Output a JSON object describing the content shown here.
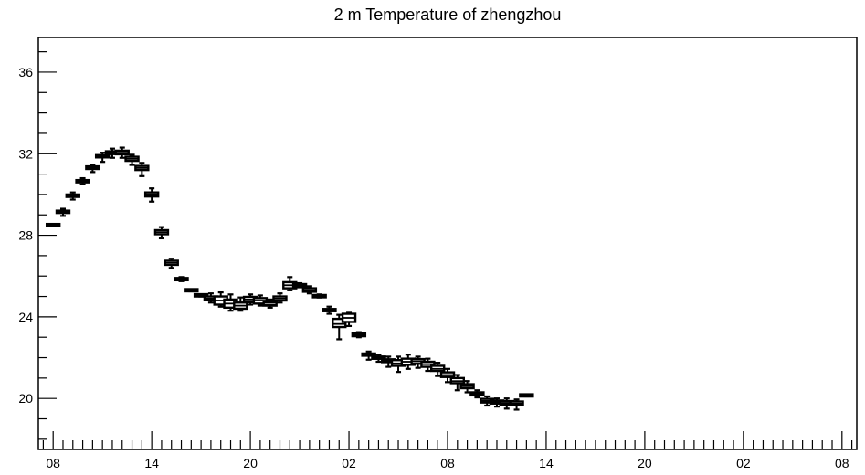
{
  "chart_data": {
    "type": "box",
    "title": "2 m Temperature of zhengzhou",
    "xlabel": "",
    "ylabel": "",
    "ylim": [
      17.5,
      37.7
    ],
    "y_ticks": [
      20,
      24,
      28,
      32,
      36
    ],
    "x_ticks": [
      {
        "index": 0,
        "label": "08"
      },
      {
        "index": 10,
        "label": "14"
      },
      {
        "index": 20,
        "label": "20"
      },
      {
        "index": 30,
        "label": "02"
      },
      {
        "index": 40,
        "label": "08"
      },
      {
        "index": 50,
        "label": "14"
      },
      {
        "index": 60,
        "label": "20"
      },
      {
        "index": 70,
        "label": "02"
      },
      {
        "index": 80,
        "label": "08"
      }
    ],
    "x_range": [
      -1.5,
      81.5
    ],
    "step_hours": 3,
    "boxes": [
      {
        "index": 0,
        "min": 28.45,
        "q1": 28.47,
        "median": 28.5,
        "q3": 28.53,
        "max": 28.55
      },
      {
        "index": 2,
        "min": 28.95,
        "q1": 29.1,
        "median": 29.15,
        "q3": 29.2,
        "max": 29.3
      },
      {
        "index": 4,
        "min": 29.75,
        "q1": 29.88,
        "median": 29.95,
        "q3": 30.0,
        "max": 30.1
      },
      {
        "index": 6,
        "min": 30.5,
        "q1": 30.6,
        "median": 30.65,
        "q3": 30.7,
        "max": 30.8
      },
      {
        "index": 8,
        "min": 31.1,
        "q1": 31.25,
        "median": 31.3,
        "q3": 31.38,
        "max": 31.45
      },
      {
        "index": 10,
        "min": 31.6,
        "q1": 31.82,
        "median": 31.87,
        "q3": 31.93,
        "max": 32.05
      },
      {
        "index": 12,
        "min": 31.8,
        "q1": 31.98,
        "median": 32.05,
        "q3": 32.12,
        "max": 32.25
      },
      {
        "index": 14,
        "min": 31.8,
        "q1": 31.97,
        "median": 32.05,
        "q3": 32.15,
        "max": 32.3
      },
      {
        "index": 16,
        "min": 31.45,
        "q1": 31.65,
        "median": 31.75,
        "q3": 31.85,
        "max": 31.95
      },
      {
        "index": 18,
        "min": 30.9,
        "q1": 31.2,
        "median": 31.3,
        "q3": 31.4,
        "max": 31.55
      },
      {
        "index": 20,
        "min": 29.65,
        "q1": 29.9,
        "median": 30.0,
        "q3": 30.1,
        "max": 30.3
      },
      {
        "index": 22,
        "min": 27.85,
        "q1": 28.05,
        "median": 28.15,
        "q3": 28.25,
        "max": 28.4
      },
      {
        "index": 24,
        "min": 26.4,
        "q1": 26.55,
        "median": 26.65,
        "q3": 26.75,
        "max": 26.85
      },
      {
        "index": 26,
        "min": 25.75,
        "q1": 25.8,
        "median": 25.85,
        "q3": 25.9,
        "max": 25.95
      },
      {
        "index": 28,
        "min": 25.25,
        "q1": 25.28,
        "median": 25.3,
        "q3": 25.33,
        "max": 25.35
      },
      {
        "index": 30,
        "min": 25.0,
        "q1": 25.03,
        "median": 25.05,
        "q3": 25.08,
        "max": 25.1
      },
      {
        "index": 32,
        "min": 24.7,
        "q1": 24.82,
        "median": 24.9,
        "q3": 25.0,
        "max": 25.15
      },
      {
        "index": 34,
        "min": 24.5,
        "q1": 24.6,
        "median": 24.8,
        "q3": 25.0,
        "max": 25.2
      },
      {
        "index": 36,
        "min": 24.3,
        "q1": 24.45,
        "median": 24.65,
        "q3": 24.85,
        "max": 25.1
      },
      {
        "index": 38,
        "min": 24.3,
        "q1": 24.4,
        "median": 24.55,
        "q3": 24.7,
        "max": 24.95
      },
      {
        "index": 40,
        "min": 24.6,
        "q1": 24.72,
        "median": 24.85,
        "q3": 24.98,
        "max": 25.1
      },
      {
        "index": 42,
        "min": 24.55,
        "q1": 24.65,
        "median": 24.8,
        "q3": 24.92,
        "max": 25.05
      },
      {
        "index": 44,
        "min": 24.45,
        "q1": 24.55,
        "median": 24.6,
        "q3": 24.72,
        "max": 24.85
      },
      {
        "index": 46,
        "min": 24.7,
        "q1": 24.8,
        "median": 24.9,
        "q3": 25.0,
        "max": 25.15
      },
      {
        "index": 48,
        "min": 25.3,
        "q1": 25.4,
        "median": 25.55,
        "q3": 25.7,
        "max": 25.95
      },
      {
        "index": 50,
        "min": 25.45,
        "q1": 25.5,
        "median": 25.55,
        "q3": 25.6,
        "max": 25.65
      },
      {
        "index": 52,
        "min": 25.15,
        "q1": 25.23,
        "median": 25.3,
        "q3": 25.4,
        "max": 25.5
      },
      {
        "index": 54,
        "min": 24.95,
        "q1": 24.98,
        "median": 25.0,
        "q3": 25.05,
        "max": 25.1
      },
      {
        "index": 56,
        "min": 24.15,
        "q1": 24.28,
        "median": 24.32,
        "q3": 24.38,
        "max": 24.5
      },
      {
        "index": 58,
        "min": 22.9,
        "q1": 23.5,
        "median": 23.65,
        "q3": 23.9,
        "max": 24.1
      },
      {
        "index": 60,
        "min": 23.55,
        "q1": 23.75,
        "median": 23.95,
        "q3": 24.15,
        "max": 24.2
      },
      {
        "index": 62,
        "min": 23.0,
        "q1": 23.05,
        "median": 23.12,
        "q3": 23.18,
        "max": 23.25
      },
      {
        "index": 64,
        "min": 21.9,
        "q1": 22.1,
        "median": 22.15,
        "q3": 22.2,
        "max": 22.3
      },
      {
        "index": 66,
        "min": 21.8,
        "q1": 21.95,
        "median": 22.0,
        "q3": 22.05,
        "max": 22.15
      },
      {
        "index": 68,
        "min": 21.55,
        "q1": 21.78,
        "median": 21.85,
        "q3": 21.92,
        "max": 22.05
      },
      {
        "index": 70,
        "min": 21.3,
        "q1": 21.6,
        "median": 21.72,
        "q3": 21.88,
        "max": 22.05
      },
      {
        "index": 72,
        "min": 21.45,
        "q1": 21.65,
        "median": 21.8,
        "q3": 21.95,
        "max": 22.15
      },
      {
        "index": 74,
        "min": 21.5,
        "q1": 21.7,
        "median": 21.82,
        "q3": 21.93,
        "max": 22.05
      },
      {
        "index": 76,
        "min": 21.35,
        "q1": 21.55,
        "median": 21.68,
        "q3": 21.8,
        "max": 21.95
      },
      {
        "index": 78,
        "min": 21.1,
        "q1": 21.35,
        "median": 21.45,
        "q3": 21.6,
        "max": 21.75
      },
      {
        "index": 80,
        "min": 20.8,
        "q1": 21.05,
        "median": 21.15,
        "q3": 21.28,
        "max": 21.45
      },
      {
        "index": 82,
        "min": 20.4,
        "q1": 20.75,
        "median": 20.85,
        "q3": 21.0,
        "max": 21.15
      },
      {
        "index": 84,
        "min": 20.3,
        "q1": 20.5,
        "median": 20.6,
        "q3": 20.7,
        "max": 20.85
      },
      {
        "index": 86,
        "min": 20.05,
        "q1": 20.15,
        "median": 20.22,
        "q3": 20.3,
        "max": 20.4
      },
      {
        "index": 88,
        "min": 19.65,
        "q1": 19.8,
        "median": 19.88,
        "q3": 19.98,
        "max": 20.1
      },
      {
        "index": 90,
        "min": 19.6,
        "q1": 19.75,
        "median": 19.82,
        "q3": 19.9,
        "max": 20.0
      },
      {
        "index": 92,
        "min": 19.5,
        "q1": 19.7,
        "median": 19.78,
        "q3": 19.87,
        "max": 20.0
      },
      {
        "index": 94,
        "min": 19.45,
        "q1": 19.68,
        "median": 19.75,
        "q3": 19.85,
        "max": 19.95
      },
      {
        "index": 96,
        "min": 20.1,
        "q1": 20.12,
        "median": 20.15,
        "q3": 20.18,
        "max": 20.2
      }
    ]
  }
}
